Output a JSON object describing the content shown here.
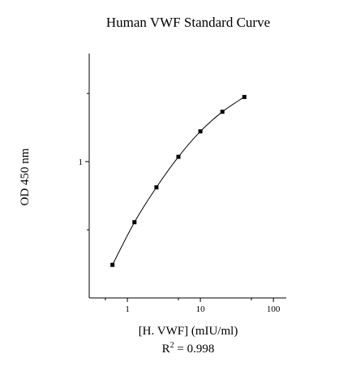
{
  "chart_data": {
    "type": "scatter",
    "title": "Human VWF Standard Curve",
    "xlabel": "[H. VWF] (mIU/ml)",
    "ylabel": "OD 450 nm",
    "annotation": {
      "prefix": "R",
      "superscript": "2",
      "text": " = 0.998"
    },
    "x_scale": "log",
    "y_scale": "log",
    "xlim": [
      0.3,
      150
    ],
    "ylim": [
      0.25,
      3.0
    ],
    "x_ticks": [
      {
        "value": 1,
        "label": "1"
      },
      {
        "value": 10,
        "label": "10"
      },
      {
        "value": 100,
        "label": "100"
      }
    ],
    "y_ticks": [
      {
        "value": 1,
        "label": "1"
      }
    ],
    "grid": false,
    "legend": "none",
    "series": [
      {
        "x": [
          0.625,
          1.25,
          2.5,
          5,
          10,
          20,
          40
        ],
        "y": [
          0.35,
          0.54,
          0.77,
          1.05,
          1.36,
          1.66,
          1.93
        ],
        "fit_curve": true
      }
    ]
  }
}
